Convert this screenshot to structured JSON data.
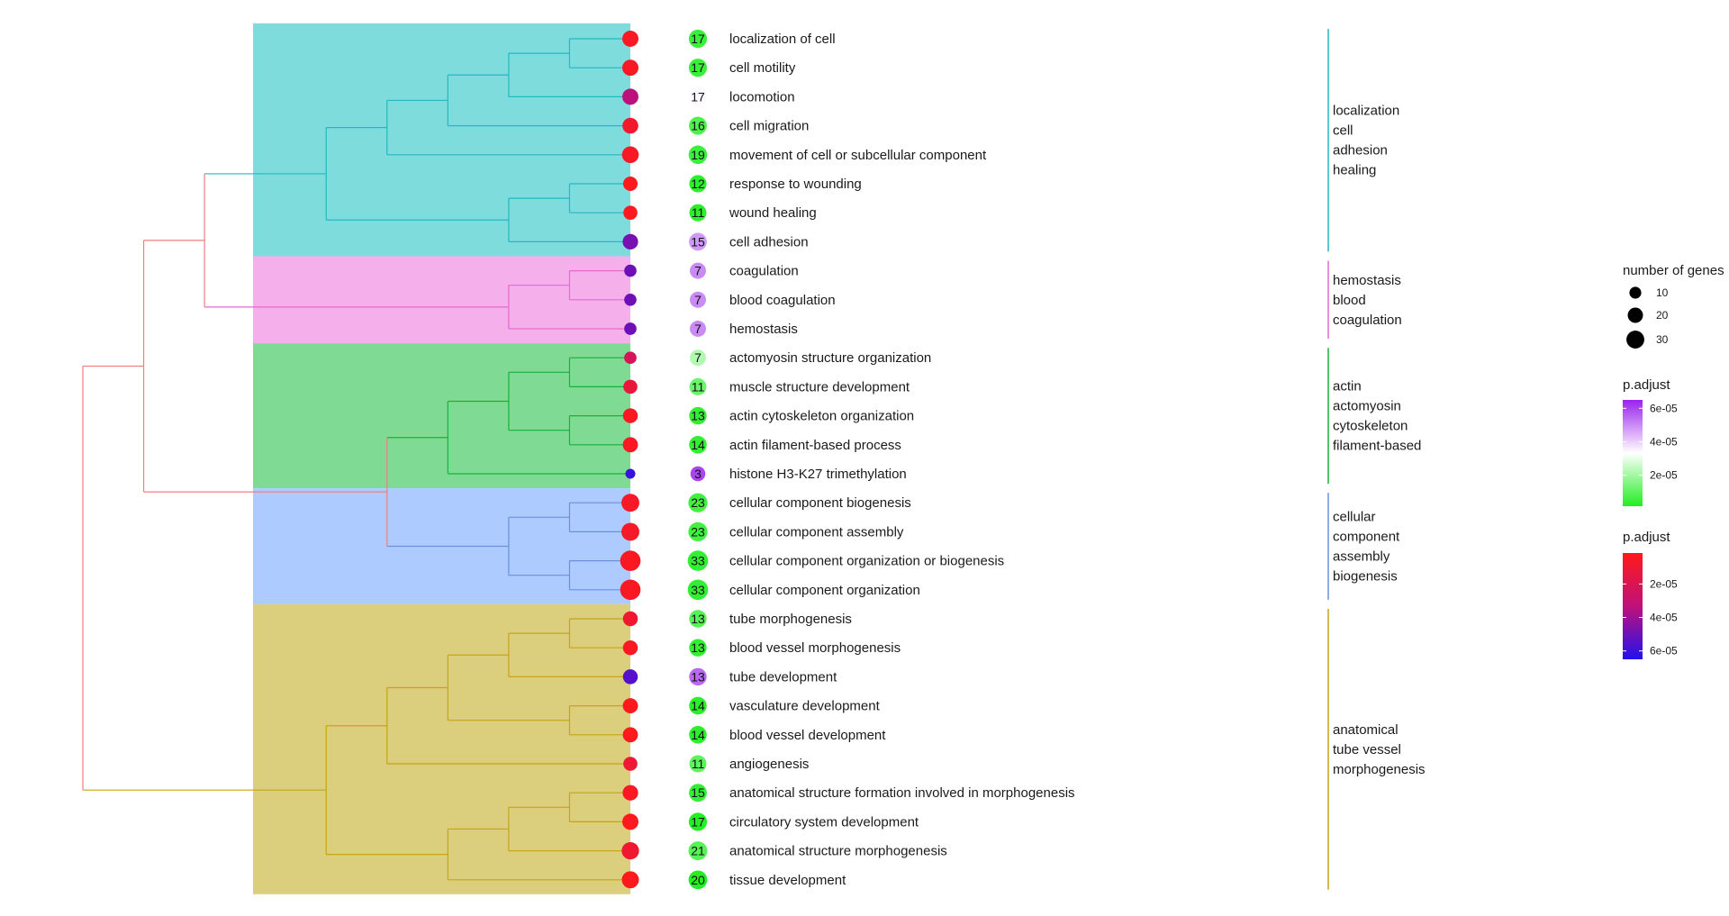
{
  "chart_data": {
    "type": "treeplot",
    "terms": [
      {
        "label": "localization of cell",
        "count": 17,
        "cluster": 0,
        "p_adjust": 5e-06
      },
      {
        "label": "cell motility",
        "count": 17,
        "cluster": 0,
        "p_adjust": 5e-06
      },
      {
        "label": "locomotion",
        "count": 17,
        "cluster": 0,
        "p_adjust": 3.4e-05
      },
      {
        "label": "cell migration",
        "count": 16,
        "cluster": 0,
        "p_adjust": 8e-06
      },
      {
        "label": "movement of cell or subcellular component",
        "count": 19,
        "cluster": 0,
        "p_adjust": 5e-06
      },
      {
        "label": "response to wounding",
        "count": 12,
        "cluster": 0,
        "p_adjust": 3e-06
      },
      {
        "label": "wound healing",
        "count": 11,
        "cluster": 0,
        "p_adjust": 3e-06
      },
      {
        "label": "cell adhesion",
        "count": 15,
        "cluster": 0,
        "p_adjust": 4.8e-05
      },
      {
        "label": "coagulation",
        "count": 7,
        "cluster": 1,
        "p_adjust": 5e-05
      },
      {
        "label": "blood coagulation",
        "count": 7,
        "cluster": 1,
        "p_adjust": 5e-05
      },
      {
        "label": "hemostasis",
        "count": 7,
        "cluster": 1,
        "p_adjust": 5e-05
      },
      {
        "label": "actomyosin structure organization",
        "count": 7,
        "cluster": 2,
        "p_adjust": 2.2e-05
      },
      {
        "label": "muscle structure development",
        "count": 11,
        "cluster": 2,
        "p_adjust": 1.2e-05
      },
      {
        "label": "actin cytoskeleton organization",
        "count": 13,
        "cluster": 2,
        "p_adjust": 4e-06
      },
      {
        "label": "actin filament-based process",
        "count": 14,
        "cluster": 2,
        "p_adjust": 4e-06
      },
      {
        "label": "histone H3-K27 trimethylation",
        "count": 3,
        "cluster": 2,
        "p_adjust": 6e-05
      },
      {
        "label": "cellular component biogenesis",
        "count": 23,
        "cluster": 3,
        "p_adjust": 6e-06
      },
      {
        "label": "cellular component assembly",
        "count": 23,
        "cluster": 3,
        "p_adjust": 6e-06
      },
      {
        "label": "cellular component organization or biogenesis",
        "count": 33,
        "cluster": 3,
        "p_adjust": 4e-06
      },
      {
        "label": "cellular component organization",
        "count": 33,
        "cluster": 3,
        "p_adjust": 4e-06
      },
      {
        "label": "tube morphogenesis",
        "count": 13,
        "cluster": 4,
        "p_adjust": 9e-06
      },
      {
        "label": "blood vessel morphogenesis",
        "count": 13,
        "cluster": 4,
        "p_adjust": 4e-06
      },
      {
        "label": "tube development",
        "count": 13,
        "cluster": 4,
        "p_adjust": 5.5e-05
      },
      {
        "label": "vasculature development",
        "count": 14,
        "cluster": 4,
        "p_adjust": 3e-06
      },
      {
        "label": "blood vessel development",
        "count": 14,
        "cluster": 4,
        "p_adjust": 3e-06
      },
      {
        "label": "angiogenesis",
        "count": 11,
        "cluster": 4,
        "p_adjust": 1e-05
      },
      {
        "label": "anatomical structure formation involved in morphogenesis",
        "count": 15,
        "cluster": 4,
        "p_adjust": 4e-06
      },
      {
        "label": "circulatory system development",
        "count": 17,
        "cluster": 4,
        "p_adjust": 2e-06
      },
      {
        "label": "anatomical structure morphogenesis",
        "count": 21,
        "cluster": 4,
        "p_adjust": 9e-06
      },
      {
        "label": "tissue development",
        "count": 20,
        "cluster": 4,
        "p_adjust": 2e-06
      }
    ],
    "clusters": [
      {
        "lines": [
          "localization",
          "cell",
          "adhesion",
          "healing"
        ],
        "color": "#22b9c4",
        "bg": "#7fdcdc"
      },
      {
        "lines": [
          "hemostasis",
          "blood",
          "coagulation"
        ],
        "color": "#e46ad2",
        "bg": "#f5b0ec"
      },
      {
        "lines": [
          "actin",
          "actomyosin",
          "cytoskeleton",
          "filament-based"
        ],
        "color": "#17b23a",
        "bg": "#7fda94"
      },
      {
        "lines": [
          "cellular",
          "component",
          "assembly",
          "biogenesis"
        ],
        "color": "#6b8fe0",
        "bg": "#aecbff"
      },
      {
        "lines": [
          "anatomical",
          "tube vessel",
          "morphogenesis"
        ],
        "color": "#c8a417",
        "bg": "#dbce7c"
      }
    ],
    "tree": {
      "root_link_color": "#f07f7f",
      "nodes": [
        {
          "c": [
            {
              "c": [
                {
                  "c": [
                    {
                      "c": [
                        {
                          "c": [
                            {
                              "c": [
                                {
                                  "c": [
                                    0,
                                    1
                                  ],
                                  "h": 0.1
                                },
                                2
                              ],
                              "h": 0.2
                            },
                            3
                          ],
                          "h": 0.3
                        },
                        4
                      ],
                      "h": 0.4
                    },
                    {
                      "c": [
                        {
                          "c": [
                            5,
                            6
                          ],
                          "h": 0.1
                        },
                        7
                      ],
                      "h": 0.2
                    }
                  ],
                  "h": 0.5
                },
                {
                  "c": [
                    {
                      "c": [
                        8,
                        9
                      ],
                      "h": 0.1
                    },
                    10
                  ],
                  "h": 0.2
                }
              ],
              "h": 0.7
            },
            {
              "c": [
                {
                  "c": [
                    {
                      "c": [
                        {
                          "c": [
                            11,
                            12
                          ],
                          "h": 0.1
                        },
                        {
                          "c": [
                            13,
                            14
                          ],
                          "h": 0.1
                        }
                      ],
                      "h": 0.2
                    },
                    15
                  ],
                  "h": 0.3
                },
                {
                  "c": [
                    {
                      "c": [
                        16,
                        17
                      ],
                      "h": 0.1
                    },
                    {
                      "c": [
                        18,
                        19
                      ],
                      "h": 0.1
                    }
                  ],
                  "h": 0.2
                }
              ],
              "h": 0.4
            }
          ],
          "h": 0.8
        },
        {
          "c": [
            {
              "c": [
                {
                  "c": [
                    {
                      "c": [
                        {
                          "c": [
                            20,
                            21
                          ],
                          "h": 0.1
                        },
                        22
                      ],
                      "h": 0.2
                    },
                    {
                      "c": [
                        23,
                        24
                      ],
                      "h": 0.1
                    }
                  ],
                  "h": 0.3
                },
                25
              ],
              "h": 0.4
            },
            {
              "c": [
                {
                  "c": [
                    {
                      "c": [
                        26,
                        27
                      ],
                      "h": 0.1
                    },
                    28
                  ],
                  "h": 0.2
                },
                29
              ],
              "h": 0.3
            }
          ],
          "h": 0.5
        }
      ],
      "root_h": 0.9
    },
    "legend": {
      "size_title": "number of genes",
      "size_values": [
        10,
        20,
        30
      ],
      "padjust_title": "p.adjust",
      "count_scale": {
        "range": [
          1.5e-06,
          6.5e-05
        ],
        "ticks": [
          2e-05,
          4e-05,
          6e-05
        ],
        "tick_labels": [
          "2e-05",
          "4e-05",
          "6e-05"
        ],
        "low_color": "#22ee22",
        "mid_color": "#ffffff",
        "high_color": "#9a22ee"
      },
      "point_scale": {
        "range": [
          1.5e-06,
          6.5e-05
        ],
        "ticks": [
          2e-05,
          4e-05,
          6e-05
        ],
        "tick_labels": [
          "2e-05",
          "4e-05",
          "6e-05"
        ],
        "low_color": "#ff1a1a",
        "mid_color": "#c0117a",
        "high_color": "#2211ee"
      }
    }
  }
}
